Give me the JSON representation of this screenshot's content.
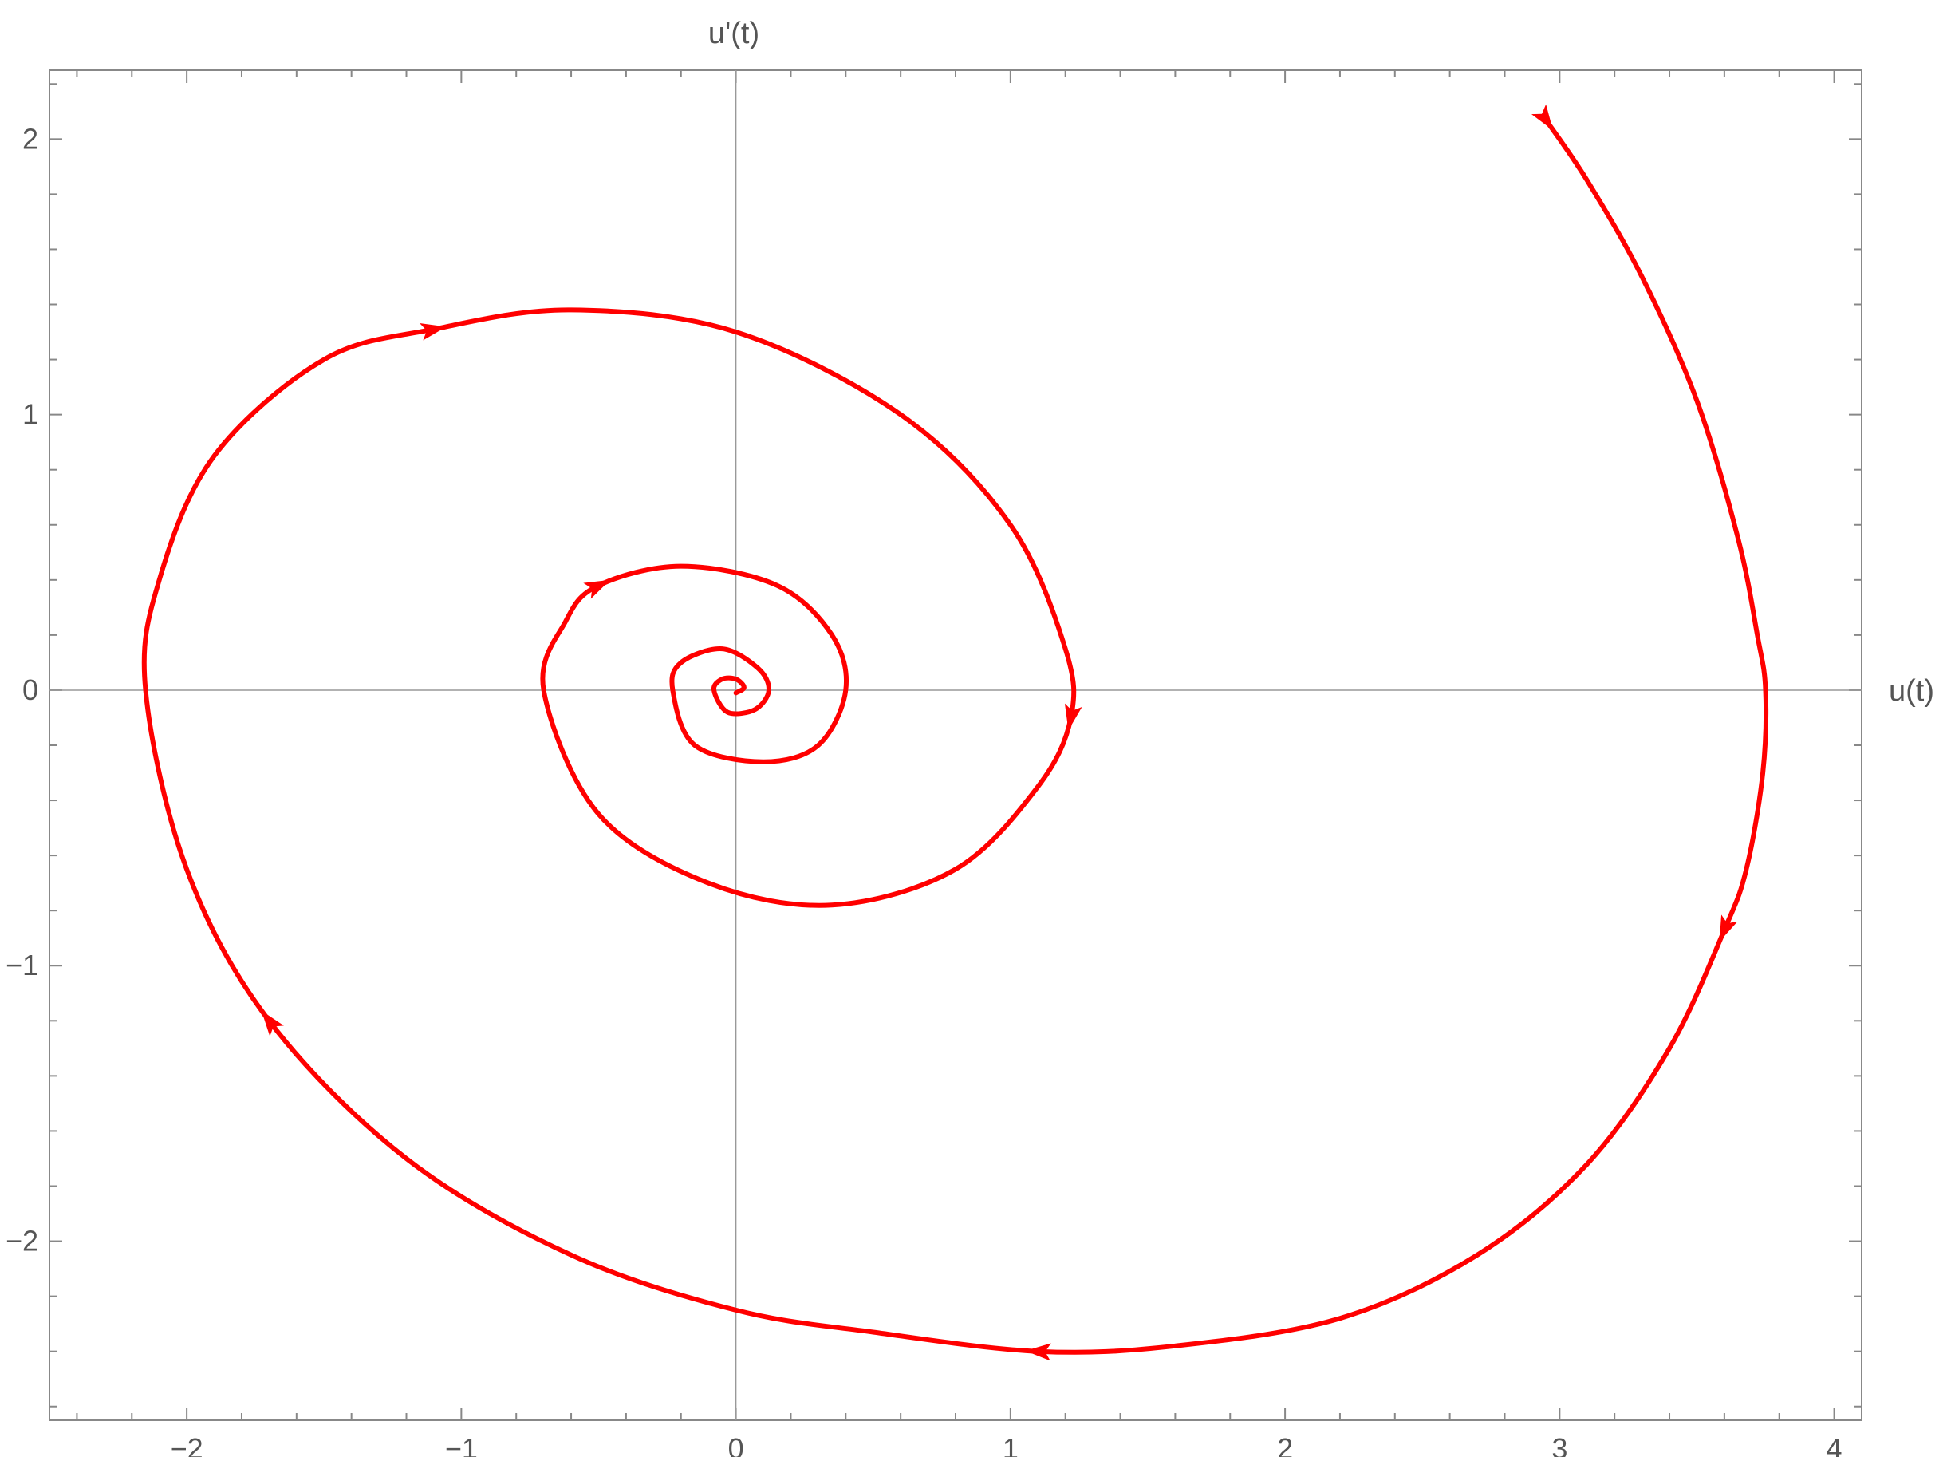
{
  "chart_data": {
    "type": "line",
    "title": "",
    "xlabel": "u(t)",
    "ylabel": "u'(t)",
    "xlim": [
      -2.5,
      4.1
    ],
    "ylim": [
      -2.65,
      2.25
    ],
    "xticks": [
      -2,
      -1,
      0,
      1,
      2,
      3,
      4
    ],
    "yticks": [
      -2,
      -1,
      0,
      1,
      2
    ],
    "xtick_labels": [
      "−2",
      "−1",
      "0",
      "1",
      "2",
      "3",
      "4"
    ],
    "ytick_labels": [
      "−2",
      "−1",
      "0",
      "1",
      "2"
    ],
    "grid": false,
    "legend": "none",
    "frame": true,
    "origin_axes": true,
    "series": [
      {
        "color": "#ff0000",
        "points": [
          [
            2.95,
            2.07
          ],
          [
            3.1,
            1.85
          ],
          [
            3.3,
            1.5
          ],
          [
            3.5,
            1.05
          ],
          [
            3.65,
            0.55
          ],
          [
            3.72,
            0.2
          ],
          [
            3.75,
            0.0
          ],
          [
            3.74,
            -0.3
          ],
          [
            3.68,
            -0.65
          ],
          [
            3.6,
            -0.87
          ],
          [
            3.4,
            -1.3
          ],
          [
            3.1,
            -1.72
          ],
          [
            2.7,
            -2.05
          ],
          [
            2.2,
            -2.28
          ],
          [
            1.6,
            -2.38
          ],
          [
            1.1,
            -2.4
          ],
          [
            0.5,
            -2.33
          ],
          [
            0.0,
            -2.25
          ],
          [
            -0.6,
            -2.05
          ],
          [
            -1.2,
            -1.7
          ],
          [
            -1.7,
            -1.2
          ],
          [
            -2.0,
            -0.65
          ],
          [
            -2.15,
            0.0
          ],
          [
            -2.1,
            0.4
          ],
          [
            -1.9,
            0.85
          ],
          [
            -1.5,
            1.2
          ],
          [
            -1.1,
            1.31
          ],
          [
            -0.6,
            1.38
          ],
          [
            0.0,
            1.3
          ],
          [
            0.6,
            1.0
          ],
          [
            1.0,
            0.6
          ],
          [
            1.2,
            0.15
          ],
          [
            1.22,
            -0.1
          ],
          [
            1.1,
            -0.35
          ],
          [
            0.8,
            -0.65
          ],
          [
            0.35,
            -0.78
          ],
          [
            -0.1,
            -0.7
          ],
          [
            -0.5,
            -0.45
          ],
          [
            -0.7,
            0.0
          ],
          [
            -0.62,
            0.25
          ],
          [
            -0.5,
            0.38
          ],
          [
            -0.2,
            0.45
          ],
          [
            0.15,
            0.38
          ],
          [
            0.35,
            0.2
          ],
          [
            0.4,
            0.0
          ],
          [
            0.3,
            -0.2
          ],
          [
            0.1,
            -0.26
          ],
          [
            -0.15,
            -0.2
          ],
          [
            -0.23,
            0.0
          ],
          [
            -0.2,
            0.1
          ],
          [
            -0.05,
            0.15
          ],
          [
            0.08,
            0.08
          ],
          [
            0.12,
            0.0
          ],
          [
            0.07,
            -0.07
          ],
          [
            -0.03,
            -0.08
          ],
          [
            -0.08,
            0.0
          ],
          [
            -0.05,
            0.04
          ],
          [
            0.0,
            0.04
          ],
          [
            0.03,
            0.01
          ],
          [
            0.0,
            -0.01
          ]
        ],
        "arrows": [
          [
            3.6,
            -0.87
          ],
          [
            1.1,
            -2.4
          ],
          [
            -1.7,
            -1.2
          ],
          [
            -1.1,
            1.31
          ],
          [
            1.22,
            -0.1
          ],
          [
            -0.5,
            0.38
          ],
          [
            2.95,
            2.07
          ]
        ]
      }
    ]
  }
}
